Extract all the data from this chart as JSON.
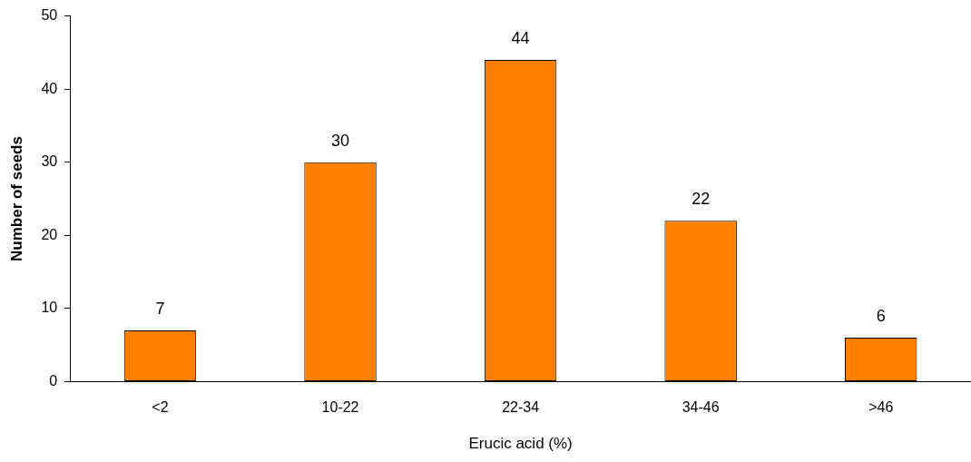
{
  "chart_data": {
    "type": "bar",
    "xlabel": "Erucic acid (%)",
    "ylabel": "Number of seeds",
    "categories": [
      "<2",
      "10-22",
      "22-34",
      "34-46",
      ">46"
    ],
    "values": [
      7,
      30,
      44,
      22,
      6
    ],
    "color": "#ff8000",
    "ylim": [
      0,
      50
    ],
    "yticks": [
      0,
      10,
      20,
      30,
      40,
      50
    ],
    "grid": false,
    "legend": false,
    "data_labels": true
  }
}
